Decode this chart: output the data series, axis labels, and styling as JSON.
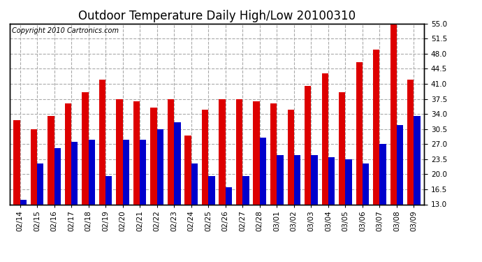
{
  "title": "Outdoor Temperature Daily High/Low 20100310",
  "copyright": "Copyright 2010 Cartronics.com",
  "dates": [
    "02/14",
    "02/15",
    "02/16",
    "02/17",
    "02/18",
    "02/19",
    "02/20",
    "02/21",
    "02/22",
    "02/23",
    "02/24",
    "02/25",
    "02/26",
    "02/27",
    "02/28",
    "03/01",
    "03/02",
    "03/03",
    "03/04",
    "03/05",
    "03/06",
    "03/07",
    "03/08",
    "03/09"
  ],
  "highs": [
    32.5,
    30.5,
    33.5,
    36.5,
    39.0,
    42.0,
    37.5,
    37.0,
    35.5,
    37.5,
    29.0,
    35.0,
    37.5,
    37.5,
    37.0,
    36.5,
    35.0,
    40.5,
    43.5,
    39.0,
    46.0,
    49.0,
    56.0,
    42.0
  ],
  "lows": [
    14.0,
    22.5,
    26.0,
    27.5,
    28.0,
    19.5,
    28.0,
    28.0,
    30.5,
    32.0,
    22.5,
    19.5,
    17.0,
    19.5,
    28.5,
    24.5,
    24.5,
    24.5,
    24.0,
    23.5,
    22.5,
    27.0,
    31.5,
    33.5
  ],
  "high_color": "#dd0000",
  "low_color": "#0000cc",
  "bg_color": "#ffffff",
  "grid_color": "#aaaaaa",
  "ylim_min": 13.0,
  "ylim_max": 55.0,
  "yticks": [
    13.0,
    16.5,
    20.0,
    23.5,
    27.0,
    30.5,
    34.0,
    37.5,
    41.0,
    44.5,
    48.0,
    51.5,
    55.0
  ],
  "title_fontsize": 12,
  "copyright_fontsize": 7,
  "tick_fontsize": 7.5,
  "bar_width": 0.38
}
